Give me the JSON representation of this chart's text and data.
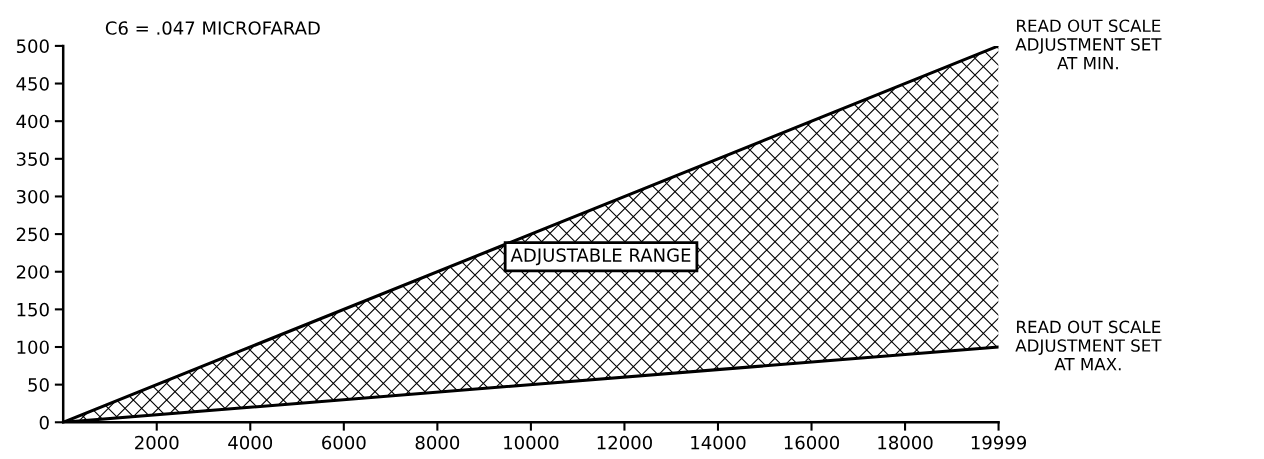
{
  "chart_data": {
    "type": "line",
    "x": [
      0,
      19999
    ],
    "series": [
      {
        "values": [
          0,
          500
        ],
        "color": "#000000"
      },
      {
        "values": [
          0,
          100
        ],
        "color": "#000000",
        "lower": [
          0,
          100
        ],
        "upper": [
          0,
          500
        ]
      }
    ],
    "xlim": [
      0,
      19999
    ],
    "ylim": [
      0,
      500
    ],
    "xticks": [
      2000,
      4000,
      6000,
      8000,
      10000,
      12000,
      14000,
      16000,
      18000,
      19999
    ],
    "yticks": [
      0,
      50,
      100,
      150,
      200,
      250,
      300,
      350,
      400,
      450,
      500
    ],
    "grid": false,
    "marker": "none",
    "line_style": "solid",
    "annotations": [
      "C6 = .047 MICROFARAD",
      "ADJUSTABLE RANGE",
      {
        "text": "READ OUT SCALE\nADJUSTMENT SET\nAT MIN.",
        "x": 19999,
        "y": 500
      },
      {
        "text": "READ OUT SCALE\nADJUSTMENT SET\nAT MAX.",
        "x": 19999,
        "y": 100
      }
    ]
  }
}
